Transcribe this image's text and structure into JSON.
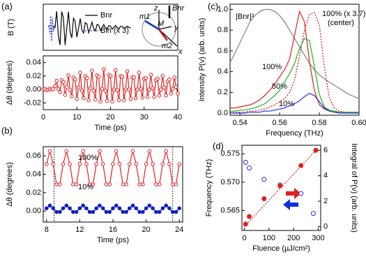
{
  "chart_data": [
    {
      "type": "line",
      "panel": "(a)",
      "ylabel": "B (T)",
      "xlim": [
        0,
        40
      ],
      "ylim": [
        -1,
        1
      ],
      "legend": "top",
      "inset_labels": [
        "z",
        "y",
        "x",
        "M",
        "m1",
        "m2",
        "Bnr"
      ],
      "series": [
        {
          "name": "Bnr",
          "color": "#000000",
          "linestyle": "solid",
          "marker": "none",
          "x": [
            3,
            3.5,
            4,
            4.5,
            5,
            5.5,
            6,
            6.5,
            7,
            7.5,
            8,
            8.5,
            9,
            9.5,
            10,
            10.5,
            11,
            11.5,
            12,
            12.5,
            13,
            13.5,
            14,
            14.5,
            15,
            15.5,
            16,
            16.5,
            17,
            17.5,
            18,
            18.5,
            19,
            19.5,
            20,
            20.5,
            21,
            21.5,
            22,
            22.5,
            23,
            23.5,
            24,
            24.5,
            25,
            25.5,
            26
          ],
          "values": [
            0,
            -0.01,
            0.69,
            -0.36,
            -0.77,
            0.68,
            0.41,
            -0.77,
            -0.05,
            0.67,
            -0.22,
            -0.46,
            0.39,
            0.25,
            -0.43,
            -0.04,
            0.38,
            -0.12,
            -0.25,
            0.2,
            0.14,
            -0.24,
            -0.03,
            0.22,
            -0.06,
            -0.16,
            0.12,
            0.09,
            -0.14,
            -0.02,
            0.12,
            -0.03,
            -0.09,
            0.07,
            0.05,
            -0.08,
            -0.01,
            0.08,
            -0.02,
            -0.06,
            0.04,
            0.04,
            -0.05,
            -0.01,
            0.05,
            -0.01,
            -0.04
          ]
        },
        {
          "name": "Bin (x 3)",
          "color": "#2030d0",
          "linestyle": "dotted",
          "marker": "none",
          "x": [
            1.5,
            1.75,
            2,
            2.25,
            2.5,
            2.75,
            3,
            3.25,
            3.5
          ],
          "values": [
            0,
            0.1,
            -0.3,
            0.5,
            -0.6,
            0.4,
            -0.2,
            0.05,
            0
          ]
        }
      ]
    },
    {
      "type": "line",
      "xlabel": "Time (ps)",
      "ylabel": "Δθ (degrees)",
      "xlim": [
        0,
        40
      ],
      "xticks": [
        0,
        10,
        20,
        30,
        40
      ],
      "ylim": [
        -0.03,
        0.05
      ],
      "yticks": [
        -0.02,
        {
          "value": 0,
          "label": "0.00"
        },
        0.02,
        0.04
      ],
      "x": [
        0,
        0.5,
        1,
        1.5,
        2,
        2.5,
        3,
        3.5,
        4,
        4.5,
        5,
        5.5,
        6,
        6.5,
        7,
        7.5,
        8,
        8.5,
        9,
        9.5,
        10,
        10.5,
        11,
        11.5,
        12,
        12.5,
        13,
        13.5,
        14,
        14.5,
        15,
        15.5,
        16,
        16.5,
        17,
        17.5,
        18,
        18.5,
        19,
        19.5,
        20,
        20.5,
        21,
        21.5,
        22,
        22.5,
        23,
        23.5,
        24,
        24.5,
        25,
        25.5,
        26,
        26.5,
        27,
        27.5,
        28,
        28.5,
        29,
        29.5,
        30,
        30.5,
        31,
        31.5,
        32,
        32.5,
        33,
        33.5,
        34,
        34.5,
        35,
        35.5,
        36,
        36.5,
        37,
        37.5,
        38,
        38.5,
        39,
        39.5,
        40
      ],
      "series": [
        {
          "color": "#e02020",
          "linestyle": "solid",
          "marker": "open",
          "values": [
            0,
            0.001,
            -0.001,
            0,
            0.001,
            0,
            0.001,
            0.005,
            0.013,
            0.001,
            -0.004,
            0.014,
            0.011,
            -0.008,
            0.004,
            0.021,
            -0.001,
            -0.01,
            0.018,
            0.015,
            -0.014,
            0.003,
            0.025,
            -0.002,
            -0.013,
            0.02,
            0.017,
            -0.016,
            0.002,
            0.028,
            -0.002,
            -0.015,
            0.021,
            0.019,
            -0.018,
            0.001,
            0.03,
            -0.002,
            -0.017,
            0.022,
            0.02,
            -0.018,
            0,
            0.029,
            -0.001,
            -0.016,
            0.02,
            0.019,
            -0.016,
            0,
            0.027,
            0,
            -0.014,
            0.018,
            0.018,
            -0.013,
            0,
            0.025,
            0.001,
            -0.012,
            0.016,
            0.017,
            -0.011,
            0,
            0.022,
            0.002,
            -0.011,
            0.014,
            0.016,
            -0.009,
            0,
            0.02,
            0.003,
            -0.009,
            0.012,
            0.015,
            -0.006,
            0.001,
            0.018,
            0.004,
            -0.006
          ]
        }
      ]
    },
    {
      "type": "line",
      "panel": "(b)",
      "xlabel": "Time (ps)",
      "ylabel": "Δθ (degrees)",
      "xlim": [
        7.6,
        24.4
      ],
      "xticks": [
        8,
        12,
        16,
        20,
        24
      ],
      "ylim": [
        -0.012,
        0.07
      ],
      "yticks": [
        {
          "value": 0,
          "label": "0.00"
        },
        0.02,
        0.04,
        0.06
      ],
      "vlines": [
        8.9,
        23.2
      ],
      "annotations": [
        "100%",
        "10%"
      ],
      "x": [
        8,
        8.4,
        8.8,
        9.2,
        9.6,
        10,
        10.4,
        10.8,
        11.2,
        11.6,
        12,
        12.4,
        12.8,
        13.2,
        13.6,
        14,
        14.4,
        14.8,
        15.2,
        15.6,
        16,
        16.4,
        16.8,
        17.2,
        17.6,
        18,
        18.4,
        18.8,
        19.2,
        19.6,
        20,
        20.4,
        20.8,
        21.2,
        21.6,
        22,
        22.4,
        22.8,
        23.2,
        23.6,
        24
      ],
      "series": [
        {
          "color": "#e02020",
          "linestyle": "solid",
          "marker": "open",
          "values": [
            0.051,
            0.065,
            0.051,
            0.029,
            0.029,
            0.051,
            0.065,
            0.051,
            0.029,
            0.029,
            0.051,
            0.065,
            0.051,
            0.029,
            0.029,
            0.051,
            0.065,
            0.051,
            0.029,
            0.029,
            0.051,
            0.065,
            0.051,
            0.029,
            0.029,
            0.051,
            0.065,
            0.051,
            0.029,
            0.029,
            0.051,
            0.065,
            0.051,
            0.029,
            0.029,
            0.051,
            0.065,
            0.051,
            0.029,
            0.029,
            0.051
          ]
        },
        {
          "color": "#1020c0",
          "linestyle": "solid",
          "marker": "filled",
          "values": [
            0.003,
            0.006,
            0.003,
            -0.001,
            -0.001,
            0.003,
            0.006,
            0.003,
            -0.001,
            -0.001,
            0.003,
            0.006,
            0.003,
            -0.001,
            -0.001,
            0.003,
            0.006,
            0.003,
            -0.001,
            -0.001,
            0.003,
            0.006,
            0.003,
            -0.001,
            -0.001,
            0.003,
            0.006,
            0.003,
            -0.001,
            -0.001,
            0.003,
            0.006,
            0.003,
            -0.001,
            -0.001,
            0.003,
            0.006,
            0.003,
            -0.001,
            -0.001,
            0.003
          ]
        }
      ]
    },
    {
      "type": "line",
      "panel": "(c)",
      "xlabel": "Frequency (THz)",
      "ylabel": "Intensity P(ν) (arb. units)",
      "xlim": [
        0.535,
        0.6
      ],
      "xticks": [
        0.54,
        0.56,
        0.58,
        {
          "value": 0.6,
          "label": "0.60"
        }
      ],
      "ylim": [
        -0.02,
        1.05
      ],
      "yticks": [
        {
          "value": 0,
          "label": "0.0"
        },
        0.2,
        0.4,
        0.6,
        0.8,
        {
          "value": 1,
          "label": "1.0"
        }
      ],
      "annotations": [
        "|Bnr|²",
        "100% (x 3.7)",
        "(center)",
        "100%",
        "50%",
        "10%"
      ],
      "x": [
        0.535,
        0.5375,
        0.54,
        0.5425,
        0.545,
        0.5475,
        0.55,
        0.5525,
        0.555,
        0.5575,
        0.56,
        0.5625,
        0.565,
        0.5675,
        0.57,
        0.5725,
        0.575,
        0.5775,
        0.58,
        0.5825,
        0.585,
        0.5875,
        0.59,
        0.5925,
        0.595,
        0.5975,
        0.6
      ],
      "series": [
        {
          "color": "#808080",
          "linestyle": "solid",
          "marker": "none",
          "values": [
            0.49,
            0.58,
            0.68,
            0.78,
            0.88,
            0.94,
            0.98,
            1,
            1,
            0.98,
            0.94,
            0.88,
            0.8,
            0.72,
            0.64,
            0.56,
            0.48,
            0.42,
            0.37,
            0.33,
            0.3,
            0.27,
            0.24,
            0.21,
            0.18,
            0.16,
            0.14
          ]
        },
        {
          "color": "#e02020",
          "linestyle": "solid",
          "marker": "none",
          "values": [
            0.05,
            0.05,
            0.06,
            0.07,
            0.08,
            0.1,
            0.13,
            0.17,
            0.22,
            0.28,
            0.35,
            0.42,
            0.52,
            0.75,
            0.98,
            0.88,
            0.5,
            0.22,
            0.08,
            0.04,
            0.02,
            0.01,
            0.01,
            0.01,
            0.01,
            0.01,
            0.01
          ]
        },
        {
          "color": "#d01010",
          "linestyle": "dotted",
          "marker": "none",
          "values": [
            0.01,
            0.01,
            0.01,
            0.01,
            0.02,
            0.02,
            0.03,
            0.04,
            0.06,
            0.08,
            0.11,
            0.14,
            0.2,
            0.32,
            0.55,
            0.8,
            0.95,
            0.97,
            0.85,
            0.45,
            0.15,
            0.05,
            0.02,
            0.01,
            0.01,
            0.01,
            0.01
          ]
        },
        {
          "color": "#20b020",
          "linestyle": "solid",
          "marker": "none",
          "values": [
            0.02,
            0.02,
            0.03,
            0.03,
            0.04,
            0.05,
            0.07,
            0.09,
            0.13,
            0.17,
            0.22,
            0.3,
            0.38,
            0.48,
            0.62,
            0.72,
            0.7,
            0.45,
            0.18,
            0.06,
            0.03,
            0.02,
            0.01,
            0.01,
            0.01,
            0.01,
            0.01
          ]
        },
        {
          "color": "#2030e0",
          "linestyle": "solid",
          "marker": "none",
          "values": [
            0,
            0,
            0,
            0,
            0.01,
            0.01,
            0.01,
            0.02,
            0.02,
            0.03,
            0.04,
            0.05,
            0.07,
            0.09,
            0.12,
            0.16,
            0.19,
            0.17,
            0.11,
            0.05,
            0.02,
            0.01,
            0,
            0,
            0,
            0,
            0
          ]
        }
      ]
    },
    {
      "type": "scatter",
      "panel": "(d)",
      "xlabel": "Fluence (µJ/cm²)",
      "ylabel": "Frequency (THz)",
      "y2label": "Integral of P(ν) (arb. units)",
      "xlim": [
        -10,
        310
      ],
      "xticks": [
        0,
        100,
        200,
        300
      ],
      "ylim": [
        0.5615,
        0.5765
      ],
      "yticks": [
        0.565,
        {
          "value": 0.57,
          "label": "0.570"
        },
        0.575
      ],
      "y2lim": [
        -0.3,
        6.4
      ],
      "y2ticks": [
        0,
        2,
        4,
        6
      ],
      "series": [
        {
          "color": "#2030d0",
          "linestyle": "none",
          "marker": "open",
          "axis": "y",
          "x": [
            5,
            20,
            80,
            145,
            230,
            280
          ],
          "values": [
            0.5735,
            0.5725,
            0.5705,
            0.5695,
            0.568,
            0.5645
          ]
        },
        {
          "color": "#e02020",
          "linestyle": "none",
          "marker": "filled",
          "axis": "y2",
          "x": [
            5,
            20,
            80,
            145,
            230,
            290
          ],
          "values": [
            0.2,
            0.8,
            2.2,
            3.2,
            4.8,
            6
          ]
        },
        {
          "color": "#e02020",
          "linestyle": "dotted",
          "marker": "none",
          "axis": "y2",
          "x": [
            0,
            300
          ],
          "values": [
            0,
            6.2
          ]
        }
      ]
    }
  ]
}
